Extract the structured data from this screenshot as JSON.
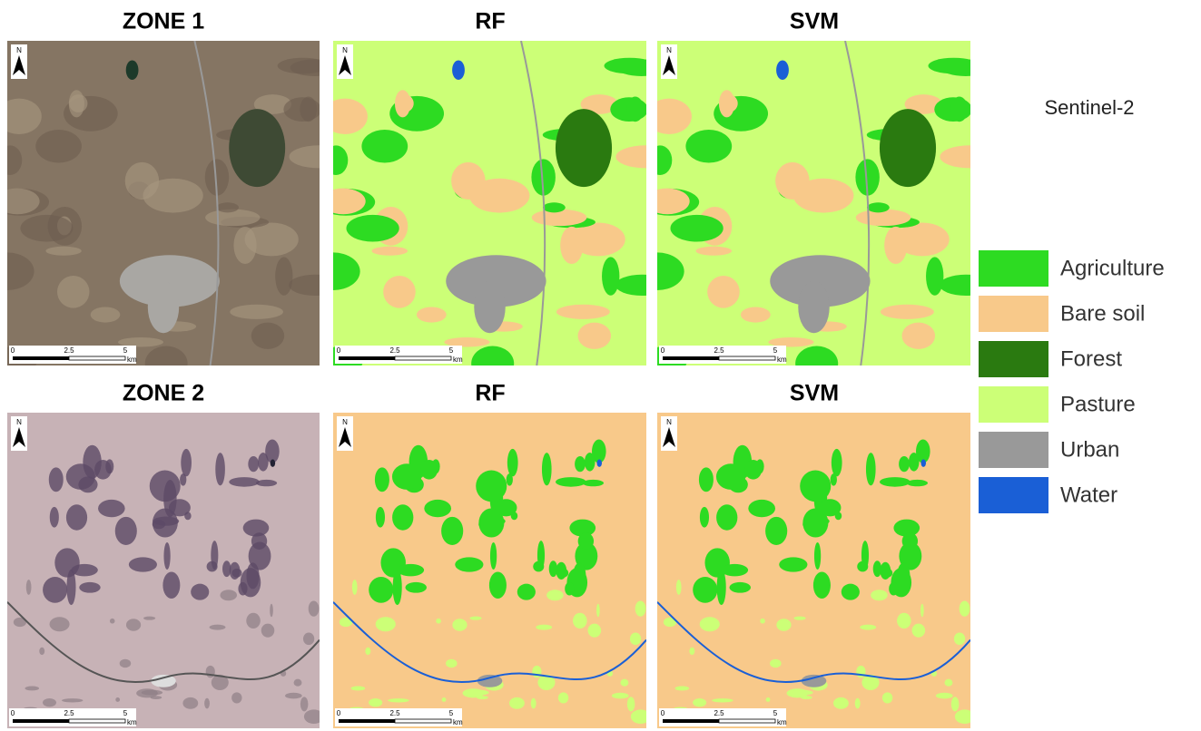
{
  "rows": [
    {
      "panels": [
        {
          "title": "ZONE 1"
        },
        {
          "title": "RF"
        },
        {
          "title": "SVM"
        }
      ]
    },
    {
      "panels": [
        {
          "title": "ZONE 2"
        },
        {
          "title": "RF"
        },
        {
          "title": "SVM"
        }
      ]
    }
  ],
  "scale_bar": {
    "labels": [
      "0",
      "2.5",
      "5"
    ],
    "unit": "km"
  },
  "north_label": "N",
  "sensor": "Sentinel-2",
  "legend": [
    {
      "label": "Agriculture",
      "color": "#2ddb22"
    },
    {
      "label": "Bare soil",
      "color": "#f8c98a"
    },
    {
      "label": "Forest",
      "color": "#2a7a10"
    },
    {
      "label": "Pasture",
      "color": "#ccff77"
    },
    {
      "label": "Urban",
      "color": "#999999"
    },
    {
      "label": "Water",
      "color": "#1a5fd6"
    }
  ]
}
